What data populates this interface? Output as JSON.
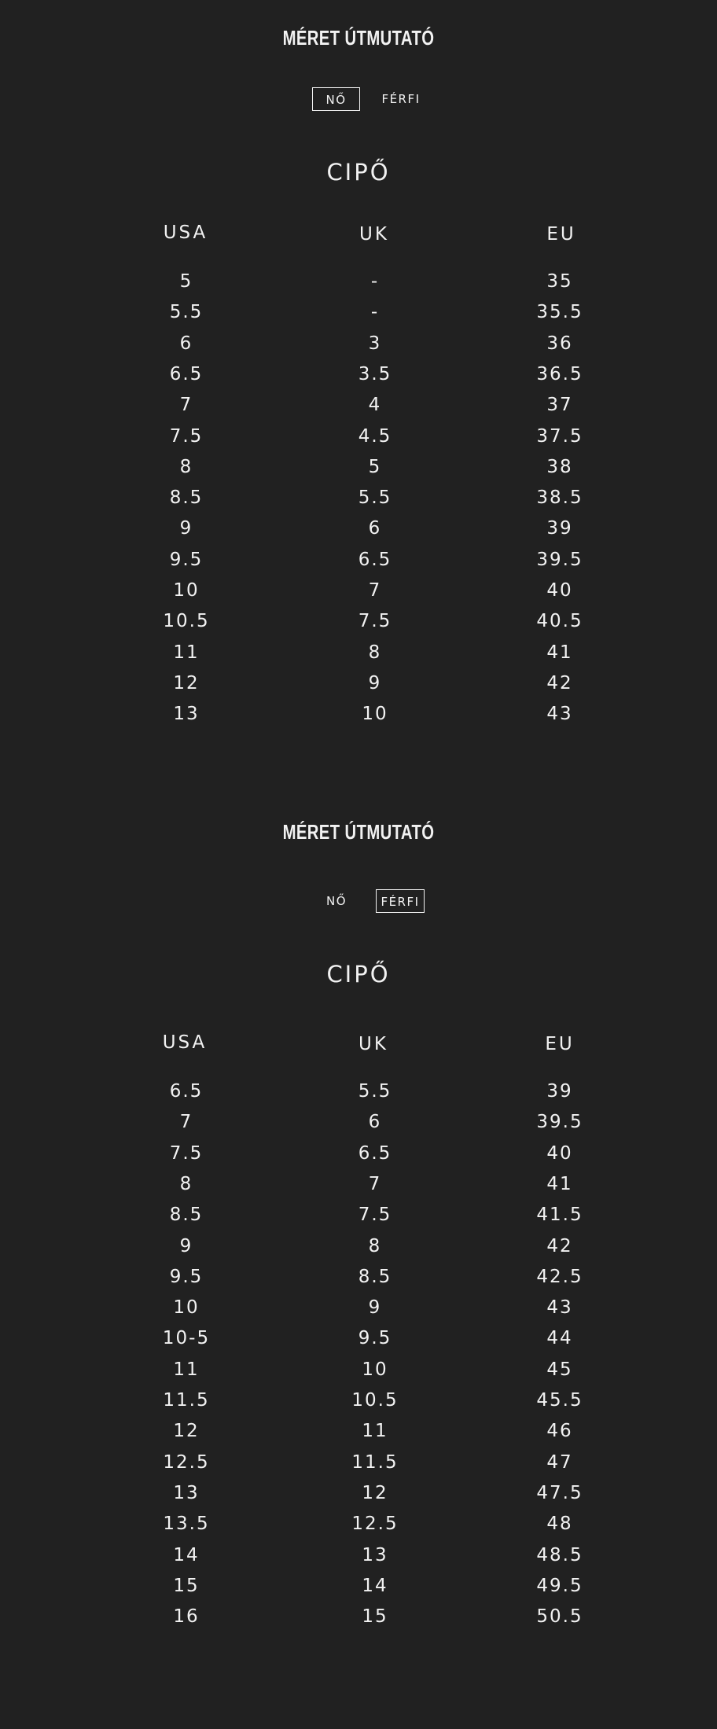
{
  "women": {
    "title": "MÉRET ÚTMUTATÓ",
    "tabs": [
      {
        "label": "NŐ",
        "active": true
      },
      {
        "label": "FÉRFI",
        "active": false
      }
    ],
    "category": "CIPŐ",
    "headers": [
      "USA",
      "UK",
      "EU"
    ],
    "rows": [
      [
        "5",
        "-",
        "35"
      ],
      [
        "5.5",
        "-",
        "35.5"
      ],
      [
        "6",
        "3",
        "36"
      ],
      [
        "6.5",
        "3.5",
        "36.5"
      ],
      [
        "7",
        "4",
        "37"
      ],
      [
        "7.5",
        "4.5",
        "37.5"
      ],
      [
        "8",
        "5",
        "38"
      ],
      [
        "8.5",
        "5.5",
        "38.5"
      ],
      [
        "9",
        "6",
        "39"
      ],
      [
        "9.5",
        "6.5",
        "39.5"
      ],
      [
        "10",
        "7",
        "40"
      ],
      [
        "10.5",
        "7.5",
        "40.5"
      ],
      [
        "11",
        "8",
        "41"
      ],
      [
        "12",
        "9",
        "42"
      ],
      [
        "13",
        "10",
        "43"
      ]
    ]
  },
  "men": {
    "title": "MÉRET ÚTMUTATÓ",
    "tabs": [
      {
        "label": "NŐ",
        "active": false
      },
      {
        "label": "FÉRFI",
        "active": true
      }
    ],
    "category": "CIPŐ",
    "headers": [
      "USA",
      "UK",
      "EU"
    ],
    "rows": [
      [
        "6.5",
        "5.5",
        "39"
      ],
      [
        "7",
        "6",
        "39.5"
      ],
      [
        "7.5",
        "6.5",
        "40"
      ],
      [
        "8",
        "7",
        "41"
      ],
      [
        "8.5",
        "7.5",
        "41.5"
      ],
      [
        "9",
        "8",
        "42"
      ],
      [
        "9.5",
        "8.5",
        "42.5"
      ],
      [
        "10",
        "9",
        "43"
      ],
      [
        "10-5",
        "9.5",
        "44"
      ],
      [
        "11",
        "10",
        "45"
      ],
      [
        "11.5",
        "10.5",
        "45.5"
      ],
      [
        "12",
        "11",
        "46"
      ],
      [
        "12.5",
        "11.5",
        "47"
      ],
      [
        "13",
        "12",
        "47.5"
      ],
      [
        "13.5",
        "12.5",
        "48"
      ],
      [
        "14",
        "13",
        "48.5"
      ],
      [
        "15",
        "14",
        "49.5"
      ],
      [
        "16",
        "15",
        "50.5"
      ]
    ]
  }
}
